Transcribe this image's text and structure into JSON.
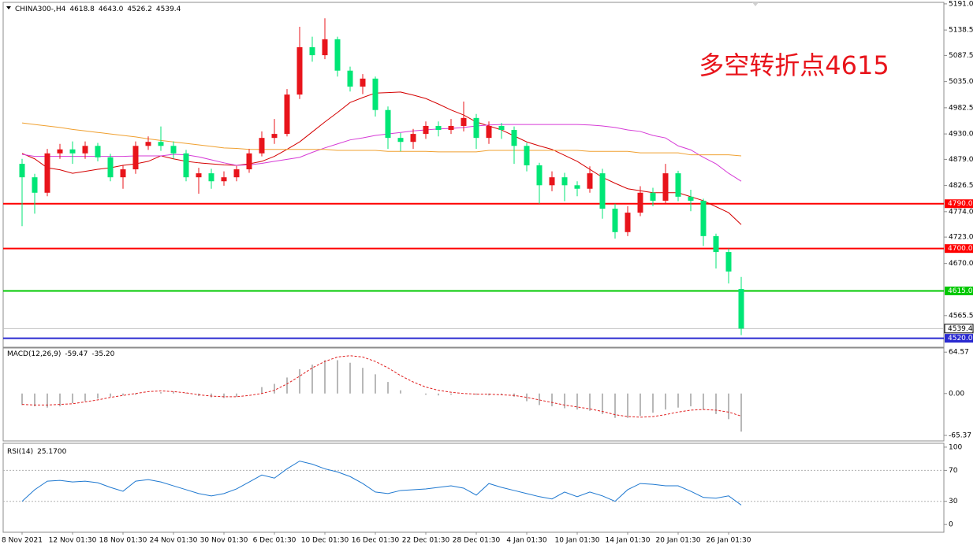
{
  "chart_data": [
    {
      "type": "candlestick",
      "symbol": "CHINA300-,H4",
      "readout_labels": [
        "4618.8",
        "4643.0",
        "4526.2",
        "4539.4"
      ],
      "annotation": "多空转折点4615",
      "categories": [
        "8 Nov 2021",
        null,
        null,
        null,
        "12 Nov 01:30",
        null,
        null,
        null,
        "18 Nov 01:30",
        null,
        null,
        null,
        "24 Nov 01:30",
        null,
        null,
        null,
        "30 Nov 01:30",
        null,
        null,
        null,
        "6 Dec 01:30",
        null,
        null,
        null,
        "10 Dec 01:30",
        null,
        null,
        null,
        "16 Dec 01:30",
        null,
        null,
        null,
        "22 Dec 01:30",
        null,
        null,
        null,
        "28 Dec 01:30",
        null,
        null,
        null,
        "4 Jan 01:30",
        null,
        null,
        null,
        "10 Jan 01:30",
        null,
        null,
        null,
        "14 Jan 01:30",
        null,
        null,
        null,
        "20 Jan 01:30",
        null,
        null,
        null,
        "26 Jan 01:30",
        null
      ],
      "open": [
        4870,
        4843,
        4812,
        4891,
        4899,
        4891,
        4906,
        4883,
        4843,
        4859,
        4906,
        4914,
        4906,
        4891,
        4843,
        4851,
        4835,
        4843,
        4859,
        4891,
        4922,
        4930,
        5009,
        5104,
        5088,
        5120,
        5057,
        5025,
        5041,
        4978,
        4922,
        4914,
        4930,
        4946,
        4938,
        4946,
        4962,
        4922,
        4946,
        4938,
        4906,
        4867,
        4827,
        4843,
        4827,
        4820,
        4851,
        4780,
        4733,
        4772,
        4812,
        4796,
        4851,
        4804,
        4796,
        4725,
        4693,
        4618.8
      ],
      "high": [
        4880,
        4850,
        4900,
        4910,
        4915,
        4915,
        4912,
        4890,
        4868,
        4915,
        4925,
        4945,
        4915,
        4898,
        4862,
        4860,
        4855,
        4866,
        4900,
        4935,
        4960,
        5020,
        5145,
        5125,
        5162,
        5125,
        5065,
        5050,
        5045,
        4985,
        4932,
        4940,
        4955,
        4955,
        4960,
        4995,
        4970,
        4955,
        4952,
        4945,
        4912,
        4872,
        4855,
        4852,
        4835,
        4865,
        4860,
        4790,
        4785,
        4825,
        4822,
        4870,
        4856,
        4818,
        4800,
        4730,
        4700,
        4643
      ],
      "low": [
        4745,
        4770,
        4805,
        4880,
        4870,
        4880,
        4875,
        4835,
        4820,
        4850,
        4898,
        4896,
        4880,
        4835,
        4810,
        4820,
        4826,
        4835,
        4852,
        4885,
        4910,
        4925,
        5000,
        5075,
        5080,
        5045,
        5015,
        5010,
        4965,
        4900,
        4895,
        4900,
        4920,
        4925,
        4930,
        4935,
        4900,
        4910,
        4920,
        4870,
        4855,
        4790,
        4815,
        4795,
        4805,
        4812,
        4760,
        4720,
        4725,
        4765,
        4785,
        4790,
        4795,
        4775,
        4705,
        4660,
        4630,
        4526.2
      ],
      "close": [
        4843,
        4812,
        4891,
        4899,
        4891,
        4906,
        4883,
        4843,
        4859,
        4906,
        4914,
        4906,
        4891,
        4843,
        4851,
        4835,
        4843,
        4859,
        4891,
        4922,
        4930,
        5009,
        5104,
        5088,
        5120,
        5057,
        5025,
        5041,
        4978,
        4922,
        4914,
        4930,
        4946,
        4938,
        4946,
        4962,
        4922,
        4946,
        4938,
        4906,
        4867,
        4827,
        4843,
        4827,
        4820,
        4851,
        4780,
        4733,
        4772,
        4812,
        4796,
        4851,
        4804,
        4796,
        4725,
        4693,
        4654,
        4539.4
      ],
      "up_color": "#e8141b",
      "down_color": "#00e676",
      "series": [
        {
          "color": "#d40000",
          "values": [
            4891,
            4880,
            4862,
            4858,
            4851,
            4855,
            4859,
            4862,
            4867,
            4870,
            4875,
            4886,
            4880,
            4875,
            4872,
            4870,
            4868,
            4867,
            4870,
            4875,
            4885,
            4899,
            4914,
            4934,
            4954,
            4973,
            4993,
            5003,
            5012,
            5013,
            5014,
            5008,
            5001,
            4990,
            4978,
            4968,
            4954,
            4946,
            4938,
            4926,
            4914,
            4906,
            4899,
            4887,
            4875,
            4859,
            4843,
            4831,
            4820,
            4816,
            4812,
            4812,
            4812,
            4804,
            4796,
            4784,
            4772,
            4748
          ]
        },
        {
          "color": "#d63bd6",
          "values": [
            4889,
            4885,
            4885,
            4885,
            4885,
            4885,
            4885,
            4885,
            4885,
            4886,
            4886,
            4886,
            4889,
            4888,
            4884,
            4878,
            4872,
            4867,
            4868,
            4871,
            4875,
            4879,
            4883,
            4893,
            4902,
            4910,
            4918,
            4922,
            4927,
            4930,
            4933,
            4936,
            4938,
            4940,
            4941,
            4943,
            4946,
            4948,
            4949,
            4949,
            4949,
            4949,
            4949,
            4949,
            4949,
            4948,
            4946,
            4943,
            4938,
            4935,
            4927,
            4922,
            4906,
            4898,
            4883,
            4870,
            4851,
            4835
          ]
        },
        {
          "color": "#f0a030",
          "values": [
            4952,
            4949,
            4946,
            4943,
            4939,
            4936,
            4933,
            4930,
            4927,
            4924,
            4920,
            4917,
            4914,
            4911,
            4908,
            4905,
            4902,
            4901,
            4899,
            4899,
            4899,
            4899,
            4899,
            4899,
            4899,
            4897,
            4897,
            4897,
            4897,
            4895,
            4895,
            4895,
            4895,
            4894,
            4894,
            4894,
            4894,
            4897,
            4897,
            4897,
            4897,
            4897,
            4897,
            4897,
            4897,
            4895,
            4895,
            4895,
            4895,
            4892,
            4892,
            4892,
            4892,
            4888,
            4888,
            4888,
            4888,
            4886
          ]
        }
      ],
      "levels": [
        {
          "value": 4790,
          "label": "4790.0",
          "color": "#ff0000"
        },
        {
          "value": 4700,
          "label": "4700.0",
          "color": "#ff0000"
        },
        {
          "value": 4615,
          "label": "4615.0",
          "color": "#00c800"
        },
        {
          "value": 4520,
          "label": "4520.0",
          "color": "#2a2ad0"
        }
      ],
      "ylim": [
        4502,
        5194
      ],
      "yticks": [
        {
          "value": 5191,
          "label": "5191.0"
        },
        {
          "value": 5138.5,
          "label": "5138.5"
        },
        {
          "value": 5087.5,
          "label": "5087.5"
        },
        {
          "value": 5035,
          "label": "5035.0"
        },
        {
          "value": 4982.5,
          "label": "4982.5"
        },
        {
          "value": 4930,
          "label": "4930.0"
        },
        {
          "value": 4879,
          "label": "4879.0"
        },
        {
          "value": 4826.5,
          "label": "4826.5"
        },
        {
          "value": 4774,
          "label": "4774.0"
        },
        {
          "value": 4723,
          "label": "4723.0"
        },
        {
          "value": 4670,
          "label": "4670.0"
        },
        {
          "value": 4565.5,
          "label": "4565.5"
        }
      ]
    },
    {
      "type": "macd",
      "indicator": "MACD(12,26,9)",
      "readout_labels": [
        "-59.47",
        "-35.20"
      ],
      "values": [
        -18,
        -20,
        -22,
        -20,
        -15,
        -12,
        -8,
        -5,
        -3,
        -2,
        0,
        2,
        3,
        1,
        -4,
        -6,
        -7,
        -5,
        0,
        10,
        15,
        25,
        38,
        45,
        52,
        52,
        48,
        40,
        30,
        18,
        5,
        0,
        -2,
        -3,
        -2,
        0,
        -2,
        -3,
        -2,
        -5,
        -12,
        -18,
        -20,
        -23,
        -25,
        -27,
        -32,
        -38,
        -38,
        -35,
        -30,
        -25,
        -22,
        -20,
        -25,
        -32,
        -40,
        -59.47
      ],
      "hist_color": "#b8b8b8",
      "signal": [
        -17,
        -18,
        -18,
        -17,
        -16,
        -13,
        -10,
        -6,
        -3,
        0,
        3,
        4,
        3,
        1,
        -2,
        -4,
        -5,
        -5,
        -3,
        0,
        5,
        15,
        27,
        40,
        50,
        57,
        59,
        57,
        50,
        40,
        28,
        18,
        10,
        5,
        2,
        0,
        -1,
        -1,
        -2,
        -3,
        -6,
        -10,
        -14,
        -18,
        -21,
        -24,
        -28,
        -33,
        -36,
        -37,
        -36,
        -33,
        -29,
        -26,
        -25,
        -26,
        -29,
        -35.2
      ],
      "signal_color": "#e02020",
      "ylim": [
        -74,
        71
      ],
      "yticks": [
        {
          "value": 64.57,
          "label": "64.57"
        },
        {
          "value": 0,
          "label": "0.00"
        },
        {
          "value": -65.37,
          "label": "-65.37"
        }
      ]
    },
    {
      "type": "rsi",
      "indicator": "RSI(14)",
      "readout_labels": [
        "25.1700"
      ],
      "values": [
        30,
        45,
        56,
        57,
        55,
        56,
        54,
        48,
        43,
        56,
        58,
        55,
        50,
        45,
        40,
        37,
        40,
        46,
        55,
        64,
        60,
        72,
        82,
        78,
        72,
        68,
        62,
        53,
        42,
        40,
        44,
        45,
        46,
        48,
        50,
        47,
        38,
        53,
        48,
        44,
        40,
        36,
        33,
        42,
        36,
        42,
        37,
        30,
        45,
        53,
        52,
        50,
        50,
        43,
        35,
        34,
        37,
        25.17
      ],
      "color": "#1e78d0",
      "levels": [
        70,
        30
      ],
      "ylim": [
        -10,
        105
      ],
      "yticks": [
        100,
        70,
        30,
        0
      ]
    }
  ]
}
